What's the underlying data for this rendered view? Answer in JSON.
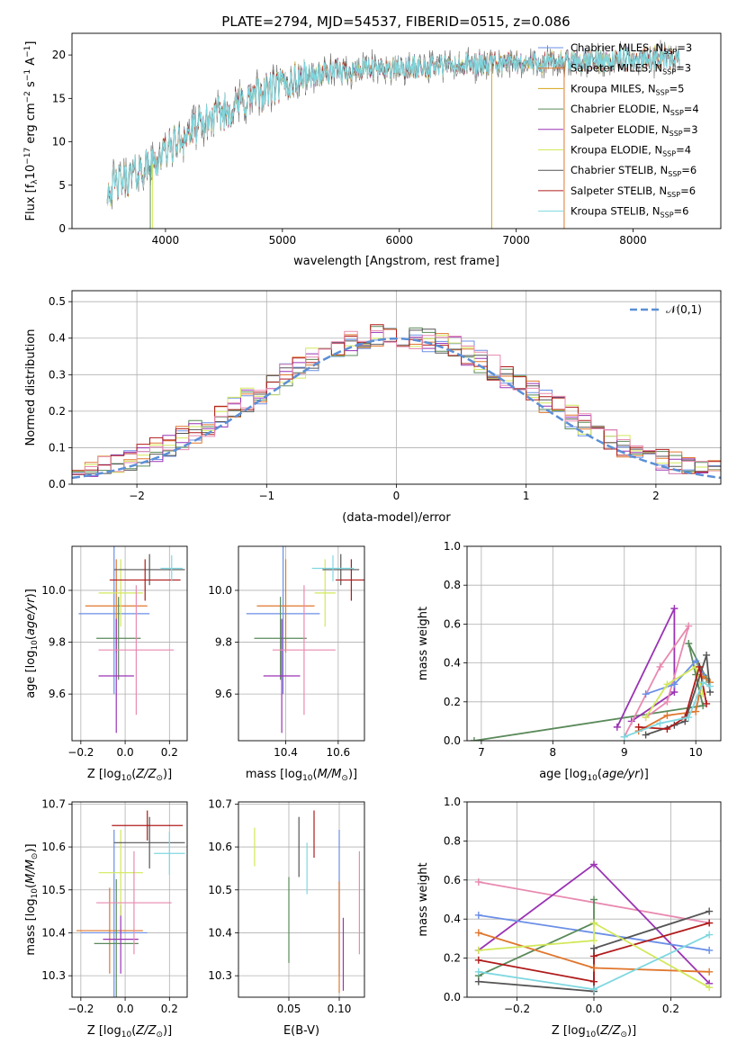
{
  "figure_title": "PLATE=2794, MJD=54537, FIBERID=0515, z=0.086",
  "colors": {
    "Chabrier MILES": "#6b8fe6",
    "Salpeter MILES": "#e0772e",
    "Kroupa MILES": "#d4a217",
    "Chabrier ELODIE": "#5a8a5a",
    "Salpeter ELODIE": "#9a33b4",
    "Kroupa ELODIE": "#d2e85a",
    "Chabrier STELIB": "#555555",
    "Salpeter STELIB": "#b01b1b",
    "Kroupa STELIB": "#7fd8e0",
    "extra": "#e88ab0"
  },
  "chart_data": [
    {
      "id": "spectrum",
      "type": "line",
      "title": "PLATE=2794, MJD=54537, FIBERID=0515, z=0.086",
      "xlabel": "wavelength [Angstrom, rest frame]",
      "ylabel": "Flux [f_λ 10^-17 erg cm^-2 s^-1 A^-1]",
      "xlim": [
        3200,
        8750
      ],
      "ylim": [
        0,
        22.5
      ],
      "xticks": [
        4000,
        5000,
        6000,
        7000,
        8000
      ],
      "yticks": [
        0,
        5,
        10,
        15,
        20
      ],
      "grid": false,
      "legend_placement": "right",
      "legend": [
        {
          "label": "Chabrier MILES, N",
          "sub": "SSP",
          "suffix": "=3",
          "color": "#6b8fe6"
        },
        {
          "label": "Salpeter MILES, N",
          "sub": "SSP",
          "suffix": "=3",
          "color": "#e0772e"
        },
        {
          "label": "Kroupa MILES, N",
          "sub": "SSP",
          "suffix": "=5",
          "color": "#d4a217"
        },
        {
          "label": "Chabrier ELODIE, N",
          "sub": "SSP",
          "suffix": "=4",
          "color": "#5a8a5a"
        },
        {
          "label": "Salpeter ELODIE, N",
          "sub": "SSP",
          "suffix": "=3",
          "color": "#9a33b4"
        },
        {
          "label": "Kroupa ELODIE, N",
          "sub": "SSP",
          "suffix": "=4",
          "color": "#d2e85a"
        },
        {
          "label": "Chabrier STELIB, N",
          "sub": "SSP",
          "suffix": "=6",
          "color": "#555555"
        },
        {
          "label": "Salpeter STELIB, N",
          "sub": "SSP",
          "suffix": "=6",
          "color": "#b01b1b"
        },
        {
          "label": "Kroupa STELIB, N",
          "sub": "SSP",
          "suffix": "=6",
          "color": "#7fd8e0"
        }
      ],
      "continuum": [
        [
          3500,
          4.5
        ],
        [
          3700,
          6.0
        ],
        [
          3900,
          7.5
        ],
        [
          4000,
          9.0
        ],
        [
          4200,
          11.0
        ],
        [
          4500,
          13.5
        ],
        [
          4800,
          15.5
        ],
        [
          5000,
          16.5
        ],
        [
          5200,
          17.5
        ],
        [
          5500,
          18.2
        ],
        [
          6000,
          18.5
        ],
        [
          6500,
          18.8
        ],
        [
          7000,
          19.0
        ],
        [
          7400,
          19.2
        ],
        [
          8000,
          19.5
        ],
        [
          8400,
          19.8
        ]
      ]
    },
    {
      "id": "residuals",
      "type": "bar",
      "xlabel": "(data-model)/error",
      "ylabel": "Normed distribution",
      "xlim": [
        -2.5,
        2.5
      ],
      "ylim": [
        0,
        0.53
      ],
      "xticks": [
        -2,
        -1,
        0,
        1,
        2
      ],
      "yticks": [
        0.0,
        0.1,
        0.2,
        0.3,
        0.4,
        0.5
      ],
      "grid": true,
      "legend_placement": "top-right",
      "legend": [
        {
          "label": "𝒩(0,1)",
          "style": "dashed",
          "color": "#5b8fd6"
        }
      ],
      "bin_width": 0.1
    },
    {
      "id": "age_vs_Z",
      "type": "scatter",
      "xlabel": "Z [log10(Z/Z_sun)]",
      "ylabel": "age [log10(age/yr)]",
      "xlim": [
        -0.24,
        0.28
      ],
      "ylim": [
        9.42,
        10.17
      ],
      "xticks": [
        -0.2,
        0.0,
        0.2
      ],
      "yticks": [
        9.6,
        9.8,
        10.0
      ],
      "grid": true,
      "errorbars": [
        {
          "series": "Chabrier MILES",
          "x": -0.05,
          "xerr": 0.16,
          "y": 9.91,
          "yerr": 0.31
        },
        {
          "series": "Salpeter MILES",
          "x": -0.04,
          "xerr": 0.14,
          "y": 9.94,
          "yerr": 0.18
        },
        {
          "series": "Chabrier ELODIE",
          "x": -0.03,
          "xerr": 0.1,
          "y": 9.815,
          "yerr": 0.16
        },
        {
          "series": "Salpeter ELODIE",
          "x": -0.04,
          "xerr": 0.08,
          "y": 9.67,
          "yerr": 0.22
        },
        {
          "series": "Kroupa ELODIE",
          "x": -0.02,
          "xerr": 0.1,
          "y": 9.99,
          "yerr": 0.13
        },
        {
          "series": "extra",
          "x": 0.05,
          "xerr": 0.17,
          "y": 9.77,
          "yerr": 0.25
        },
        {
          "series": "Chabrier STELIB",
          "x": 0.11,
          "xerr": 0.16,
          "y": 10.08,
          "yerr": 0.06
        },
        {
          "series": "Salpeter STELIB",
          "x": 0.09,
          "xerr": 0.16,
          "y": 10.04,
          "yerr": 0.08
        },
        {
          "series": "Kroupa STELIB",
          "x": 0.21,
          "xerr": 0.05,
          "y": 10.085,
          "yerr": 0.05
        }
      ]
    },
    {
      "id": "age_vs_mass",
      "type": "scatter",
      "xlabel": "mass [log10(M/M_sun)]",
      "xlim": [
        10.22,
        10.7
      ],
      "ylim": [
        9.42,
        10.17
      ],
      "xticks": [
        10.4,
        10.6
      ],
      "yticks": [
        9.6,
        9.8,
        10.0
      ],
      "grid": true,
      "errorbars": [
        {
          "series": "Chabrier MILES",
          "x": 10.39,
          "xerr": 0.14,
          "y": 9.91,
          "yerr": 0.31
        },
        {
          "series": "Salpeter MILES",
          "x": 10.4,
          "xerr": 0.11,
          "y": 9.94,
          "yerr": 0.18
        },
        {
          "series": "Chabrier ELODIE",
          "x": 10.38,
          "xerr": 0.1,
          "y": 9.815,
          "yerr": 0.16
        },
        {
          "series": "Salpeter ELODIE",
          "x": 10.385,
          "xerr": 0.07,
          "y": 9.67,
          "yerr": 0.22
        },
        {
          "series": "Kroupa ELODIE",
          "x": 10.55,
          "xerr": 0.04,
          "y": 9.99,
          "yerr": 0.13
        },
        {
          "series": "extra",
          "x": 10.47,
          "xerr": 0.12,
          "y": 9.77,
          "yerr": 0.25
        },
        {
          "series": "Chabrier STELIB",
          "x": 10.61,
          "xerr": 0.07,
          "y": 10.08,
          "yerr": 0.06
        },
        {
          "series": "Salpeter STELIB",
          "x": 10.65,
          "xerr": 0.06,
          "y": 10.04,
          "yerr": 0.08
        },
        {
          "series": "Kroupa STELIB",
          "x": 10.58,
          "xerr": 0.08,
          "y": 10.085,
          "yerr": 0.05
        }
      ]
    },
    {
      "id": "weight_vs_age",
      "type": "line",
      "xlabel": "age [log10(age/yr)]",
      "ylabel": "mass weight",
      "xlim": [
        6.8,
        10.35
      ],
      "ylim": [
        0,
        1.0
      ],
      "xticks": [
        7,
        8,
        9,
        10
      ],
      "yticks": [
        0.0,
        0.2,
        0.4,
        0.6,
        0.8,
        1.0
      ],
      "grid": true,
      "series": [
        {
          "name": "Chabrier ELODIE",
          "x": [
            6.9,
            10.1,
            10.0,
            9.9,
            10.15
          ],
          "y": [
            0.0,
            0.18,
            0.34,
            0.5,
            0.32
          ]
        },
        {
          "name": "Salpeter ELODIE",
          "x": [
            8.9,
            9.7,
            9.7,
            9.1
          ],
          "y": [
            0.07,
            0.68,
            0.25,
            0.1
          ]
        },
        {
          "name": "extra",
          "x": [
            9.0,
            9.5,
            9.9,
            9.6,
            9.3
          ],
          "y": [
            0.02,
            0.38,
            0.59,
            0.2,
            0.12
          ]
        },
        {
          "name": "Chabrier MILES",
          "x": [
            9.3,
            9.7,
            10.0,
            10.1
          ],
          "y": [
            0.24,
            0.29,
            0.41,
            0.34
          ]
        },
        {
          "name": "Salpeter MILES",
          "x": [
            9.2,
            9.6,
            10.0,
            10.1,
            10.2
          ],
          "y": [
            0.05,
            0.13,
            0.15,
            0.33,
            0.3
          ]
        },
        {
          "name": "Kroupa ELODIE",
          "x": [
            9.3,
            9.6,
            10.0,
            10.1
          ],
          "y": [
            0.12,
            0.29,
            0.38,
            0.24
          ]
        },
        {
          "name": "Chabrier STELIB",
          "x": [
            9.3,
            9.7,
            9.85,
            10.15,
            10.2
          ],
          "y": [
            0.03,
            0.08,
            0.1,
            0.44,
            0.25
          ]
        },
        {
          "name": "Salpeter STELIB",
          "x": [
            9.2,
            9.6,
            9.85,
            10.05,
            10.15
          ],
          "y": [
            0.07,
            0.06,
            0.12,
            0.38,
            0.19
          ]
        },
        {
          "name": "Kroupa STELIB",
          "x": [
            9.0,
            9.5,
            9.9,
            10.1,
            10.2
          ],
          "y": [
            0.02,
            0.09,
            0.12,
            0.3,
            0.28
          ]
        }
      ]
    },
    {
      "id": "mass_vs_Z",
      "type": "scatter",
      "xlabel": "Z [log10(Z/Z_sun)]",
      "ylabel": "mass [log10(M/M_sun)]",
      "xlim": [
        -0.24,
        0.28
      ],
      "ylim": [
        10.25,
        10.705
      ],
      "xticks": [
        -0.2,
        0.0,
        0.2
      ],
      "yticks": [
        10.3,
        10.4,
        10.5,
        10.6,
        10.7
      ],
      "grid": true,
      "errorbars": [
        {
          "series": "Chabrier MILES",
          "x": -0.05,
          "xerr": 0.15,
          "y": 10.4,
          "yerr": 0.24
        },
        {
          "series": "Salpeter MILES",
          "x": -0.07,
          "xerr": 0.15,
          "y": 10.405,
          "yerr": 0.1
        },
        {
          "series": "Chabrier ELODIE",
          "x": -0.04,
          "xerr": 0.1,
          "y": 10.375,
          "yerr": 0.15
        },
        {
          "series": "Salpeter ELODIE",
          "x": -0.02,
          "xerr": 0.08,
          "y": 10.385,
          "yerr": 0.08
        },
        {
          "series": "Kroupa ELODIE",
          "x": -0.02,
          "xerr": 0.1,
          "y": 10.54,
          "yerr": 0.1
        },
        {
          "series": "extra",
          "x": 0.04,
          "xerr": 0.17,
          "y": 10.47,
          "yerr": 0.12
        },
        {
          "series": "Chabrier STELIB",
          "x": 0.11,
          "xerr": 0.16,
          "y": 10.61,
          "yerr": 0.06
        },
        {
          "series": "Salpeter STELIB",
          "x": 0.1,
          "xerr": 0.16,
          "y": 10.65,
          "yerr": 0.035
        },
        {
          "series": "Kroupa STELIB",
          "x": 0.2,
          "xerr": 0.07,
          "y": 10.585,
          "yerr": 0.05
        }
      ]
    },
    {
      "id": "mass_vs_ebv",
      "type": "scatter",
      "xlabel": "E(B-V)",
      "xlim": [
        0.0,
        0.125
      ],
      "ylim": [
        10.25,
        10.705
      ],
      "xticks": [
        0.05,
        0.1
      ],
      "yticks": [
        10.3,
        10.4,
        10.5,
        10.6,
        10.7
      ],
      "grid": true,
      "errorbars": [
        {
          "series": "Kroupa ELODIE",
          "x": 0.016,
          "y": 10.6,
          "yerr": 0.045
        },
        {
          "series": "Chabrier ELODIE",
          "x": 0.05,
          "y": 10.43,
          "yerr": 0.1
        },
        {
          "series": "Chabrier STELIB",
          "x": 0.06,
          "y": 10.6,
          "yerr": 0.07
        },
        {
          "series": "Salpeter STELIB",
          "x": 0.075,
          "y": 10.63,
          "yerr": 0.055
        },
        {
          "series": "Kroupa STELIB",
          "x": 0.068,
          "y": 10.55,
          "yerr": 0.06
        },
        {
          "series": "Chabrier MILES",
          "x": 0.1,
          "y": 10.47,
          "yerr": 0.17
        },
        {
          "series": "Salpeter MILES",
          "x": 0.1,
          "y": 10.39,
          "yerr": 0.13
        },
        {
          "series": "Salpeter ELODIE",
          "x": 0.104,
          "y": 10.35,
          "yerr": 0.085
        },
        {
          "series": "extra",
          "x": 0.12,
          "y": 10.47,
          "yerr": 0.12
        }
      ]
    },
    {
      "id": "weight_vs_Z",
      "type": "line",
      "xlabel": "Z [log10(Z/Z_sun)]",
      "ylabel": "mass weight",
      "xlim": [
        -0.33,
        0.33
      ],
      "ylim": [
        0,
        1.0
      ],
      "xticks": [
        -0.2,
        0.0,
        0.2
      ],
      "yticks": [
        0.0,
        0.2,
        0.4,
        0.6,
        0.8,
        1.0
      ],
      "grid": true,
      "series": [
        {
          "name": "extra",
          "x": [
            -0.3,
            0.3
          ],
          "y": [
            0.59,
            0.38
          ]
        },
        {
          "name": "Salpeter ELODIE",
          "x": [
            -0.3,
            0.0,
            0.3
          ],
          "y": [
            0.24,
            0.68,
            0.07
          ]
        },
        {
          "name": "Chabrier MILES",
          "x": [
            -0.3,
            0.3
          ],
          "y": [
            0.42,
            0.24
          ]
        },
        {
          "name": "Chabrier ELODIE",
          "x": [
            -0.3,
            0.0,
            0.0
          ],
          "y": [
            0.11,
            0.38,
            0.5
          ]
        },
        {
          "name": "Chabrier STELIB",
          "x": [
            -0.3,
            0.0,
            0.0,
            0.3
          ],
          "y": [
            0.08,
            0.03,
            0.25,
            0.44
          ]
        },
        {
          "name": "Salpeter STELIB",
          "x": [
            -0.3,
            0.0,
            0.0,
            0.3
          ],
          "y": [
            0.19,
            0.08,
            0.21,
            0.38
          ]
        },
        {
          "name": "Salpeter MILES",
          "x": [
            -0.3,
            0.0,
            0.3
          ],
          "y": [
            0.33,
            0.15,
            0.13
          ]
        },
        {
          "name": "Kroupa ELODIE",
          "x": [
            -0.3,
            0.0,
            0.0,
            0.3
          ],
          "y": [
            0.24,
            0.29,
            0.38,
            0.05
          ]
        },
        {
          "name": "Kroupa STELIB",
          "x": [
            -0.3,
            0.0,
            0.3
          ],
          "y": [
            0.13,
            0.04,
            0.32
          ]
        }
      ]
    }
  ]
}
